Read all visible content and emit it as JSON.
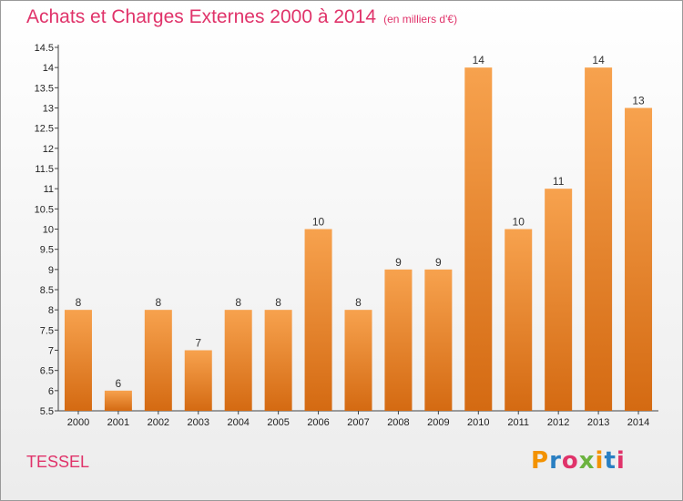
{
  "header": {
    "title": "Achats et Charges Externes 2000 à 2014",
    "subtitle": "(en milliers d'€)"
  },
  "footer": {
    "town": "TESSEL",
    "logo_letters": [
      "P",
      "r",
      "o",
      "x",
      "i",
      "t",
      "i"
    ]
  },
  "colors": {
    "bar_top": "#f7a24e",
    "bar_bottom": "#d46a12",
    "title": "#e0336a"
  },
  "chart_data": {
    "type": "bar",
    "title": "Achats et Charges Externes 2000 à 2014",
    "subtitle": "(en milliers d'€)",
    "xlabel": "",
    "ylabel": "",
    "ylim": [
      5.5,
      14.5
    ],
    "yticks": [
      "5.5",
      "6",
      "6.5",
      "7",
      "7.5",
      "8",
      "8.5",
      "9",
      "9.5",
      "10",
      "10.5",
      "11",
      "11.5",
      "12",
      "12.5",
      "13",
      "13.5",
      "14",
      "14.5"
    ],
    "grid": false,
    "legend": "none",
    "categories": [
      "2000",
      "2001",
      "2002",
      "2003",
      "2004",
      "2005",
      "2006",
      "2007",
      "2008",
      "2009",
      "2010",
      "2011",
      "2012",
      "2013",
      "2014"
    ],
    "values": [
      8,
      6,
      8,
      7,
      8,
      8,
      10,
      8,
      9,
      9,
      14,
      10,
      11,
      14,
      13
    ],
    "value_labels": [
      "8",
      "6",
      "8",
      "7",
      "8",
      "8",
      "10",
      "8",
      "9",
      "9",
      "14",
      "10",
      "11",
      "14",
      "13"
    ]
  }
}
